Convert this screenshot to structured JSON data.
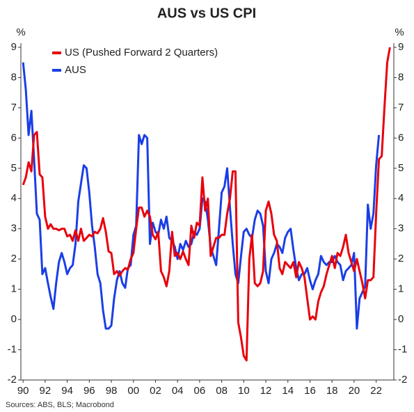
{
  "chart_data": {
    "type": "line",
    "title": "AUS vs US CPI",
    "y_label": "%",
    "y2_label": "%",
    "source": "Sources: ABS, BLS; Macrobond",
    "legend": "upper left",
    "x": [
      1990,
      1990.25,
      1990.5,
      1990.75,
      1991,
      1991.25,
      1991.5,
      1991.75,
      1992,
      1992.25,
      1992.5,
      1992.75,
      1993,
      1993.25,
      1993.5,
      1993.75,
      1994,
      1994.25,
      1994.5,
      1994.75,
      1995,
      1995.25,
      1995.5,
      1995.75,
      1996,
      1996.25,
      1996.5,
      1996.75,
      1997,
      1997.25,
      1997.5,
      1997.75,
      1998,
      1998.25,
      1998.5,
      1998.75,
      1999,
      1999.25,
      1999.5,
      1999.75,
      2000,
      2000.25,
      2000.5,
      2000.75,
      2001,
      2001.25,
      2001.5,
      2001.75,
      2002,
      2002.25,
      2002.5,
      2002.75,
      2003,
      2003.25,
      2003.5,
      2003.75,
      2004,
      2004.25,
      2004.5,
      2004.75,
      2005,
      2005.25,
      2005.5,
      2005.75,
      2006,
      2006.25,
      2006.5,
      2006.75,
      2007,
      2007.25,
      2007.5,
      2007.75,
      2008,
      2008.25,
      2008.5,
      2008.75,
      2009,
      2009.25,
      2009.5,
      2009.75,
      2010,
      2010.25,
      2010.5,
      2010.75,
      2011,
      2011.25,
      2011.5,
      2011.75,
      2012,
      2012.25,
      2012.5,
      2012.75,
      2013,
      2013.25,
      2013.5,
      2013.75,
      2014,
      2014.25,
      2014.5,
      2014.75,
      2015,
      2015.25,
      2015.5,
      2015.75,
      2016,
      2016.25,
      2016.5,
      2016.75,
      2017,
      2017.25,
      2017.5,
      2017.75,
      2018,
      2018.25,
      2018.5,
      2018.75,
      2019,
      2019.25,
      2019.5,
      2019.75,
      2020,
      2020.25,
      2020.5,
      2020.75,
      2021,
      2021.25,
      2021.5,
      2021.75,
      2022,
      2022.25,
      2022.5,
      2022.75,
      2023,
      2023.25
    ],
    "series": [
      {
        "name": "US (Pushed Forward 2 Quarters)",
        "color": "#e8000b",
        "values": [
          4.45,
          4.7,
          5.2,
          4.9,
          6.1,
          6.2,
          4.8,
          4.7,
          3.4,
          3.0,
          3.15,
          3.0,
          3.0,
          2.95,
          3.0,
          3.0,
          2.75,
          2.8,
          2.6,
          2.95,
          2.6,
          3.0,
          2.6,
          2.7,
          2.8,
          2.75,
          2.9,
          2.85,
          3.0,
          3.35,
          2.9,
          2.25,
          2.2,
          1.5,
          1.6,
          1.45,
          1.6,
          1.7,
          1.65,
          2.0,
          2.2,
          3.0,
          3.7,
          3.7,
          3.4,
          3.6,
          3.4,
          2.8,
          2.65,
          2.9,
          1.6,
          1.4,
          1.1,
          1.6,
          2.9,
          2.1,
          2.2,
          2.0,
          2.25,
          2.0,
          1.8,
          3.1,
          2.7,
          3.2,
          3.1,
          4.7,
          3.6,
          4.0,
          2.1,
          2.4,
          2.7,
          2.7,
          2.8,
          2.8,
          3.5,
          4.0,
          4.9,
          4.9,
          -0.1,
          -0.6,
          -1.2,
          -1.35,
          2.0,
          2.8,
          1.2,
          1.1,
          1.2,
          1.6,
          3.6,
          3.9,
          3.5,
          2.8,
          2.6,
          1.7,
          1.5,
          1.9,
          1.8,
          1.7,
          1.9,
          1.4,
          1.9,
          1.7,
          1.4,
          0.7,
          0.0,
          0.1,
          0.0,
          0.6,
          0.9,
          1.1,
          1.5,
          1.8,
          2.1,
          1.7,
          2.2,
          2.1,
          2.4,
          2.8,
          2.2,
          1.9,
          1.6,
          2.0,
          1.6,
          1.2,
          0.7,
          1.3,
          1.3,
          1.4,
          3.5,
          5.3,
          5.4,
          7.0,
          8.5,
          9.0
        ]
      },
      {
        "name": "AUS",
        "color": "#1a3ee6",
        "values": [
          8.5,
          7.6,
          6.1,
          6.9,
          5.3,
          3.5,
          3.3,
          1.5,
          1.7,
          1.2,
          0.75,
          0.35,
          1.2,
          1.9,
          2.2,
          1.9,
          1.5,
          1.7,
          1.8,
          2.5,
          3.9,
          4.5,
          5.1,
          5.0,
          4.2,
          3.1,
          2.4,
          1.5,
          1.2,
          0.3,
          -0.3,
          -0.3,
          -0.2,
          0.7,
          1.3,
          1.6,
          1.2,
          1.05,
          1.7,
          1.8,
          2.8,
          3.1,
          6.1,
          5.8,
          6.1,
          6.0,
          2.5,
          3.2,
          2.9,
          2.8,
          3.3,
          3.0,
          3.4,
          2.7,
          2.6,
          2.4,
          2.0,
          2.5,
          2.3,
          2.6,
          2.4,
          2.5,
          2.9,
          2.8,
          3.0,
          4.0,
          3.9,
          3.3,
          2.4,
          2.1,
          1.8,
          3.0,
          4.2,
          4.4,
          5.0,
          3.7,
          2.5,
          1.5,
          1.2,
          2.1,
          2.9,
          3.0,
          2.8,
          2.7,
          3.3,
          3.6,
          3.5,
          3.1,
          1.6,
          1.2,
          2.0,
          2.2,
          2.5,
          2.4,
          2.2,
          2.7,
          2.9,
          3.0,
          2.3,
          1.7,
          1.3,
          1.5,
          1.5,
          1.7,
          1.3,
          1.0,
          1.3,
          1.5,
          2.1,
          1.9,
          1.8,
          1.9,
          1.9,
          2.1,
          1.9,
          1.8,
          1.3,
          1.6,
          1.7,
          1.8,
          2.2,
          -0.3,
          0.7,
          0.9,
          1.1,
          3.8,
          3.0,
          3.5,
          5.1,
          6.1,
          null,
          null,
          null,
          null
        ]
      }
    ],
    "xlim": [
      1989.8,
      2023.6
    ],
    "xticks": [
      {
        "value": 1990,
        "label": "90"
      },
      {
        "value": 1992,
        "label": "92"
      },
      {
        "value": 1994,
        "label": "94"
      },
      {
        "value": 1996,
        "label": "96"
      },
      {
        "value": 1998,
        "label": "98"
      },
      {
        "value": 2000,
        "label": "00"
      },
      {
        "value": 2002,
        "label": "02"
      },
      {
        "value": 2004,
        "label": "04"
      },
      {
        "value": 2006,
        "label": "06"
      },
      {
        "value": 2008,
        "label": "08"
      },
      {
        "value": 2010,
        "label": "10"
      },
      {
        "value": 2012,
        "label": "12"
      },
      {
        "value": 2014,
        "label": "14"
      },
      {
        "value": 2016,
        "label": "16"
      },
      {
        "value": 2018,
        "label": "18"
      },
      {
        "value": 2020,
        "label": "20"
      },
      {
        "value": 2022,
        "label": "22"
      }
    ],
    "ylim": [
      -2,
      9
    ],
    "yticks": [
      -2,
      -1,
      0,
      1,
      2,
      3,
      4,
      5,
      6,
      7,
      8,
      9
    ],
    "y2lim": [
      -2,
      9
    ],
    "y2ticks": [
      -2,
      -1,
      0,
      1,
      2,
      3,
      4,
      5,
      6,
      7,
      8,
      9
    ],
    "grid": false
  }
}
